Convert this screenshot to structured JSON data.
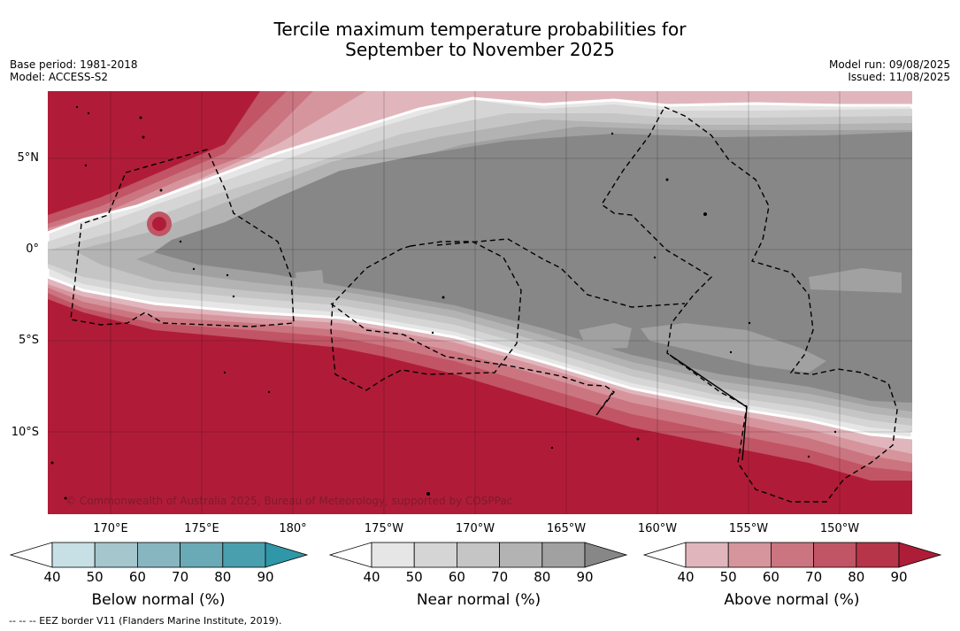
{
  "title": {
    "line1": "Tercile maximum temperature probabilities for",
    "line2": "September to November 2025"
  },
  "meta_left": {
    "base_period": "Base period: 1981-2018",
    "model": "Model: ACCESS-S2"
  },
  "meta_right": {
    "model_run": "Model run: 09/08/2025",
    "issued": "Issued: 11/08/2025"
  },
  "map": {
    "lat_labels": [
      "5°N",
      "0°",
      "5°S",
      "10°S"
    ],
    "lon_labels": [
      "170°E",
      "175°E",
      "180°",
      "175°W",
      "170°W",
      "165°W",
      "160°W",
      "155°W",
      "150°W"
    ],
    "copyright": "© Commonwealth of Australia 2025, Bureau of Meteorology, supported by COSPPac",
    "colors": {
      "above_dark": "#b01c38",
      "near_dark": "#878787",
      "eez_line": "#000000"
    }
  },
  "colorbars": [
    {
      "title": "Below normal (%)",
      "ticks": [
        "40",
        "50",
        "60",
        "70",
        "80",
        "90"
      ],
      "colors": [
        "#ffffff",
        "#c7e0e5",
        "#a4c6cc",
        "#87b6c0",
        "#6aaab7",
        "#4a9fae",
        "#2f97a8"
      ]
    },
    {
      "title": "Near normal (%)",
      "ticks": [
        "40",
        "50",
        "60",
        "70",
        "80",
        "90"
      ],
      "colors": [
        "#ffffff",
        "#e6e6e6",
        "#d5d5d5",
        "#c5c5c5",
        "#b3b3b3",
        "#a1a1a1",
        "#878787"
      ]
    },
    {
      "title": "Above normal (%)",
      "ticks": [
        "40",
        "50",
        "60",
        "70",
        "80",
        "90"
      ],
      "colors": [
        "#ffffff",
        "#e0b6bc",
        "#d6959d",
        "#cb7580",
        "#c15565",
        "#b73549",
        "#ad1d38"
      ]
    }
  ],
  "footnote": "-- -- -- EEZ border V11 (Flanders Marine Institute, 2019)."
}
